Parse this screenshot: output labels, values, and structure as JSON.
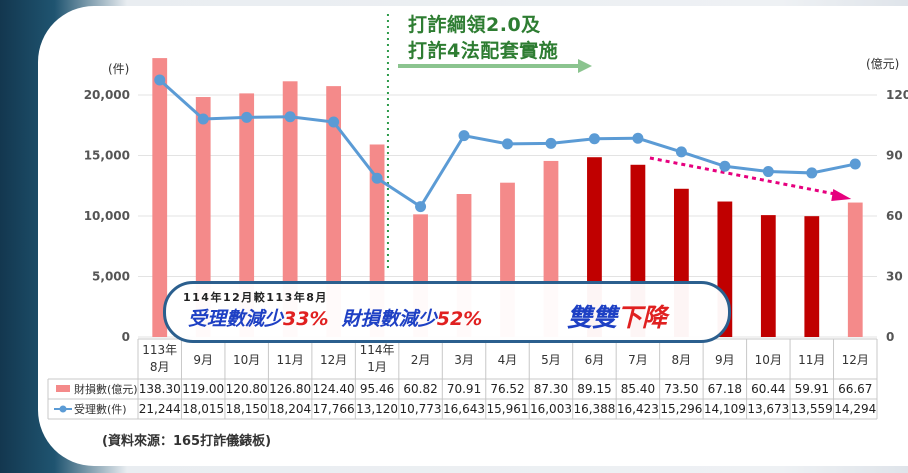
{
  "banner": {
    "line1": "打詐綱領2.0及",
    "line2": "打詐4法配套實施"
  },
  "source_note": "(資料來源：165打詐儀錶板)",
  "callout": {
    "line1": "114年12月較113年8月",
    "cases_label": "受理數減少",
    "cases_pct": "33%",
    "loss_label": "財損數減少",
    "loss_pct": "52%",
    "slogan_a": "雙雙",
    "slogan_b": "下降"
  },
  "chart_data": {
    "type": "bar",
    "left_unit": "(件)",
    "right_unit": "(億元)",
    "categories": [
      "113年\n8月",
      "9月",
      "10月",
      "11月",
      "12月",
      "114年\n1月",
      "2月",
      "3月",
      "4月",
      "5月",
      "6月",
      "7月",
      "8月",
      "9月",
      "10月",
      "11月",
      "12月"
    ],
    "left_ticks": [
      "20,000",
      "15,000",
      "10,000",
      "5,000",
      "0"
    ],
    "right_ticks": [
      "120",
      "90",
      "60",
      "30",
      "0"
    ],
    "left_ylim": [
      0,
      20000
    ],
    "right_ylim": [
      0,
      120
    ],
    "series": [
      {
        "name": "財損數(億元)",
        "axis": "right",
        "values": [
          138.3,
          119.0,
          120.8,
          126.8,
          124.4,
          95.46,
          60.82,
          70.91,
          76.52,
          87.3,
          89.15,
          85.4,
          73.5,
          67.18,
          60.44,
          59.91,
          66.67
        ],
        "labels": [
          "138.30",
          "119.00",
          "120.80",
          "126.80",
          "124.40",
          "95.46",
          "60.82",
          "70.91",
          "76.52",
          "87.30",
          "89.15",
          "85.40",
          "73.50",
          "67.18",
          "60.44",
          "59.91",
          "66.67"
        ]
      },
      {
        "name": "受理數(件)",
        "axis": "left",
        "values": [
          21244,
          18015,
          18150,
          18204,
          17766,
          13120,
          10773,
          16643,
          15961,
          16003,
          16388,
          16423,
          15296,
          14109,
          13673,
          13559,
          14294
        ],
        "labels": [
          "21,244",
          "18,015",
          "18,150",
          "18,204",
          "17,766",
          "13,120",
          "10,773",
          "16,643",
          "15,961",
          "16,003",
          "16,388",
          "16,423",
          "15,296",
          "14,109",
          "13,673",
          "13,559",
          "14,294"
        ]
      }
    ],
    "colors": {
      "bar_light": "#f48a8a",
      "bar_dark": "#c00000",
      "line": "#5b9bd5",
      "arrow": "#e6007e",
      "divider": "#2e9b4a"
    }
  }
}
